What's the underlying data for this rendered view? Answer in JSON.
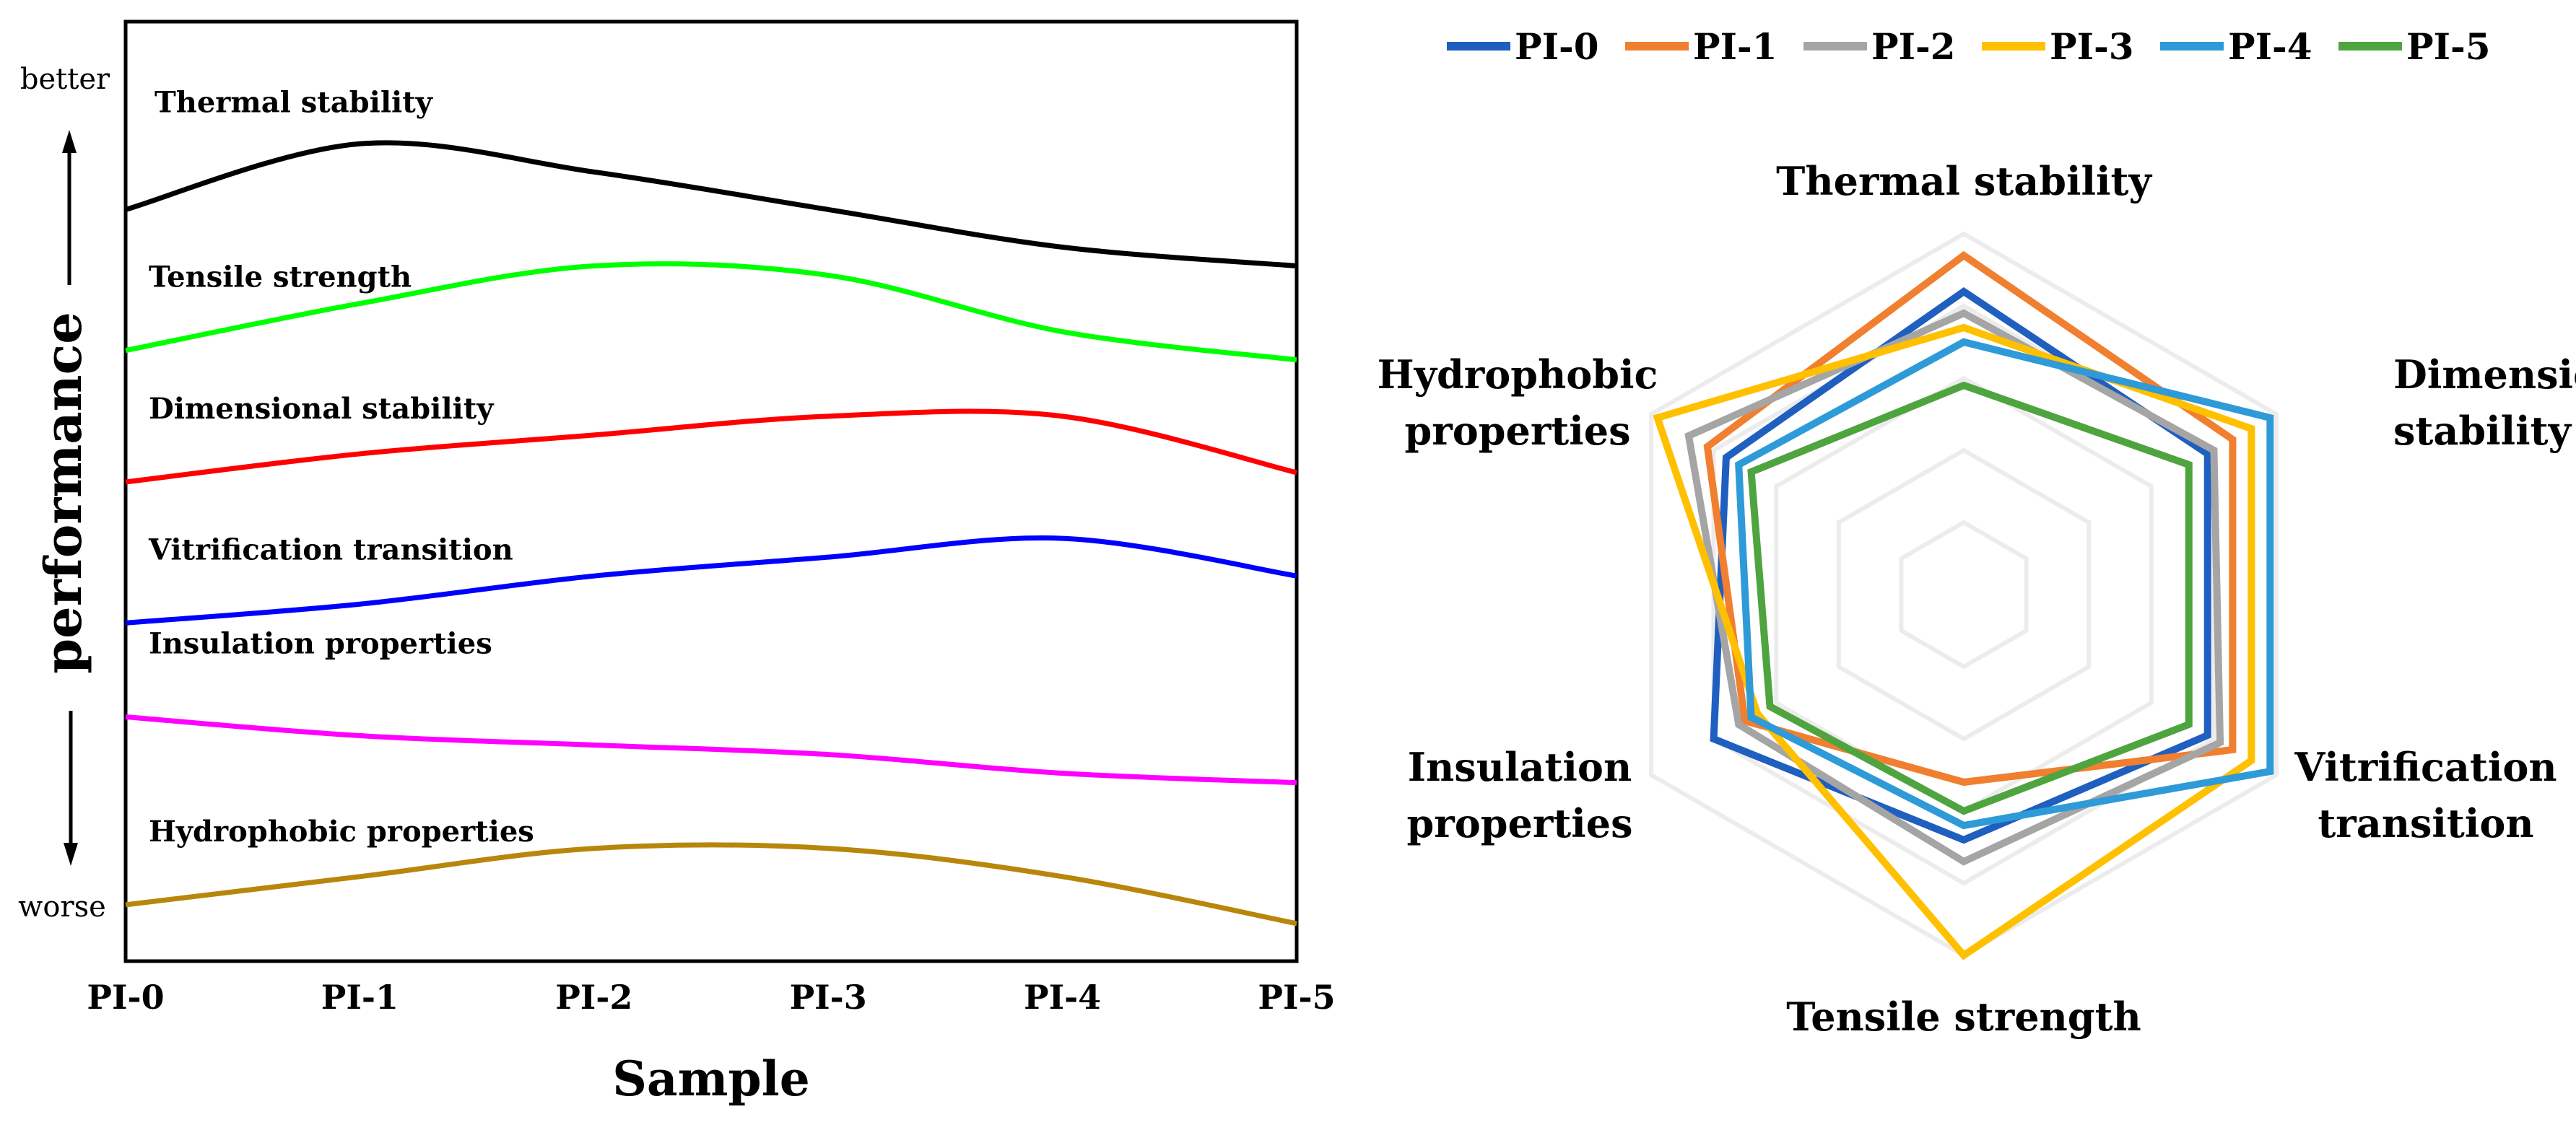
{
  "chart_data": [
    {
      "type": "line",
      "title": "",
      "xlabel": "Sample",
      "ylabel": "performance",
      "y_top_label": "better",
      "y_bottom_label": "worse",
      "categories": [
        "PI-0",
        "PI-1",
        "PI-2",
        "PI-3",
        "PI-4",
        "PI-5"
      ],
      "ylim": [
        0,
        100
      ],
      "grid": false,
      "series": [
        {
          "name": "Thermal stability",
          "color": "#000000",
          "values": [
            80,
            87,
            84,
            80,
            76,
            74
          ]
        },
        {
          "name": "Tensile strength",
          "color": "#00ff00",
          "values": [
            65,
            70,
            74,
            73,
            67,
            64
          ]
        },
        {
          "name": "Dimensional stability",
          "color": "#ff0000",
          "values": [
            51,
            54,
            56,
            58,
            58,
            52
          ]
        },
        {
          "name": "Vitrification transition",
          "color": "#0000ff",
          "values": [
            36,
            38,
            41,
            43,
            45,
            41
          ]
        },
        {
          "name": "Insulation properties",
          "color": "#ff00ff",
          "values": [
            26,
            24,
            23,
            22,
            20,
            19
          ]
        },
        {
          "name": "Hydrophobic properties",
          "color": "#b8860b",
          "values": [
            6,
            9,
            12,
            12,
            9,
            4
          ]
        }
      ]
    },
    {
      "type": "radar",
      "title": "",
      "axes": [
        "Thermal stability",
        "Dimensional stability",
        "Vitrification transition",
        "Tensile strength",
        "Insulation properties",
        "Hydrophobic properties"
      ],
      "axis_label_lines": [
        [
          "Thermal stability"
        ],
        [
          "Dimensional",
          "stability"
        ],
        [
          "Vitrification",
          "transition"
        ],
        [
          "Tensile strength"
        ],
        [
          "Insulation",
          "properties"
        ],
        [
          "Hydrophobic",
          "properties"
        ]
      ],
      "rlim": [
        0,
        5
      ],
      "rings": [
        1,
        2,
        3,
        4,
        5
      ],
      "legend_position": "top",
      "series": [
        {
          "name": "PI-0",
          "color": "#1f5fbf",
          "values": [
            4.2,
            3.9,
            3.9,
            3.4,
            4.0,
            3.8
          ]
        },
        {
          "name": "PI-1",
          "color": "#f07f2f",
          "values": [
            4.7,
            4.3,
            4.3,
            2.6,
            3.5,
            4.1
          ]
        },
        {
          "name": "PI-2",
          "color": "#a5a5a5",
          "values": [
            3.9,
            4.0,
            4.1,
            3.7,
            3.6,
            4.4
          ]
        },
        {
          "name": "PI-3",
          "color": "#ffc000",
          "values": [
            3.7,
            4.6,
            4.6,
            5.0,
            3.3,
            4.9
          ]
        },
        {
          "name": "PI-4",
          "color": "#2e9ad8",
          "values": [
            3.5,
            4.9,
            4.9,
            3.2,
            3.4,
            3.6
          ]
        },
        {
          "name": "PI-5",
          "color": "#4ea43f",
          "values": [
            2.9,
            3.6,
            3.6,
            3.0,
            3.1,
            3.4
          ]
        }
      ]
    }
  ]
}
